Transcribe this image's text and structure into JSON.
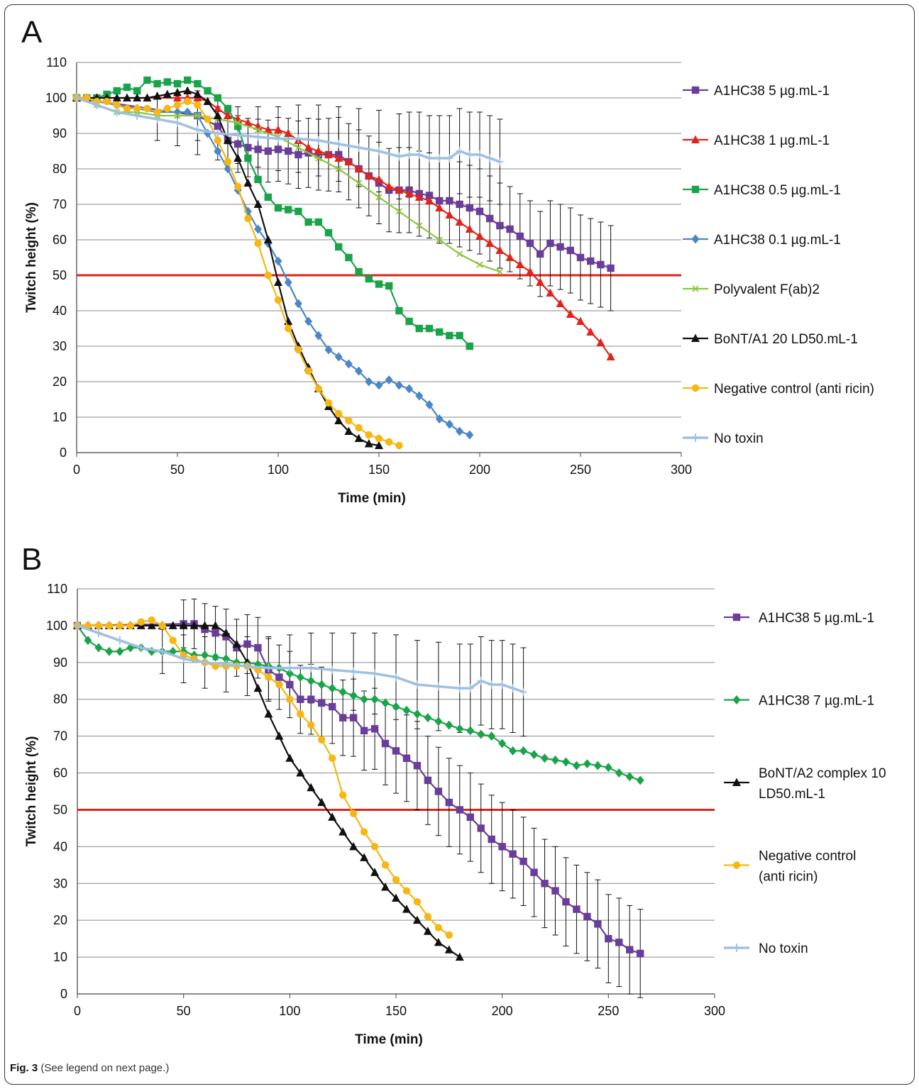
{
  "caption": {
    "label": "Fig. 3",
    "text": "(See legend on next page.)"
  },
  "chart_data": [
    {
      "panel": "A",
      "type": "line",
      "xlabel": "Time (min)",
      "ylabel": "Twitch height (%)",
      "xlim": [
        0,
        300
      ],
      "ylim": [
        0,
        110
      ],
      "xticks": [
        0,
        50,
        100,
        150,
        200,
        250,
        300
      ],
      "yticks": [
        0,
        10,
        20,
        30,
        40,
        50,
        60,
        70,
        80,
        90,
        100,
        110
      ],
      "grid": "horizontal",
      "legend": "right",
      "threshold": {
        "y": 50,
        "color": "#e0241b"
      },
      "series": [
        {
          "name": "A1HC38 5 µg.mL-1",
          "color": "#6a3d9a",
          "marker": "square",
          "errorbars": true,
          "x": [
            0,
            60,
            70,
            75,
            80,
            85,
            90,
            95,
            100,
            105,
            110,
            115,
            120,
            125,
            130,
            135,
            140,
            145,
            150,
            155,
            160,
            165,
            170,
            175,
            180,
            185,
            190,
            195,
            200,
            205,
            210,
            215,
            220,
            225,
            230,
            235,
            240,
            245,
            250,
            255,
            260,
            265
          ],
          "y": [
            100,
            95,
            92,
            88,
            87,
            86,
            85.5,
            85,
            85.5,
            85,
            84,
            84.5,
            84,
            84,
            84,
            82,
            80,
            78,
            76,
            74,
            74,
            74,
            73,
            72.5,
            71,
            71,
            70,
            69,
            68,
            66,
            64,
            63,
            61,
            59,
            56,
            59,
            58,
            57,
            55,
            54,
            53,
            52
          ]
        },
        {
          "name": "A1HC38 1 µg.mL-1",
          "color": "#e0241b",
          "marker": "triangle",
          "errorbars": false,
          "x": [
            0,
            50,
            55,
            60,
            65,
            70,
            75,
            80,
            85,
            90,
            95,
            100,
            105,
            110,
            115,
            120,
            125,
            130,
            135,
            140,
            145,
            150,
            155,
            160,
            165,
            170,
            175,
            180,
            185,
            190,
            195,
            200,
            205,
            210,
            215,
            220,
            225,
            230,
            235,
            240,
            245,
            250,
            255,
            260,
            265
          ],
          "y": [
            100,
            100,
            100,
            100,
            99,
            97,
            95,
            94,
            93,
            92,
            91,
            91,
            90,
            88,
            86,
            85,
            84,
            83,
            82,
            80,
            78,
            77,
            75,
            74,
            73,
            72,
            71,
            69,
            67,
            65,
            63,
            61,
            59,
            57,
            55,
            53,
            51,
            48,
            45,
            42,
            39,
            37,
            34,
            31,
            27
          ]
        },
        {
          "name": "A1HC38 0.5 µg.mL-1",
          "color": "#1aa44a",
          "marker": "square",
          "errorbars": false,
          "x": [
            0,
            5,
            10,
            15,
            20,
            25,
            30,
            35,
            40,
            45,
            50,
            55,
            60,
            65,
            70,
            75,
            80,
            85,
            90,
            95,
            100,
            105,
            110,
            115,
            120,
            125,
            130,
            135,
            140,
            145,
            150,
            155,
            160,
            165,
            170,
            175,
            180,
            185,
            190,
            195
          ],
          "y": [
            100,
            100,
            100,
            101,
            102,
            103,
            102,
            105,
            104,
            104.5,
            104,
            105,
            104,
            102,
            100,
            97,
            92,
            83,
            77,
            72,
            69,
            68.5,
            68,
            65,
            65,
            62,
            58,
            55,
            51,
            49,
            47.5,
            47,
            40,
            37,
            35,
            35,
            34,
            33,
            33,
            30
          ]
        },
        {
          "name": "A1HC38 0.1 µg.mL-1",
          "color": "#4a86c8",
          "marker": "diamond",
          "errorbars": false,
          "x": [
            0,
            10,
            20,
            30,
            40,
            50,
            55,
            60,
            65,
            70,
            75,
            80,
            85,
            90,
            95,
            100,
            105,
            110,
            115,
            120,
            125,
            130,
            135,
            140,
            145,
            150,
            155,
            160,
            165,
            170,
            175,
            180,
            185,
            190,
            195
          ],
          "y": [
            100,
            99,
            98,
            97,
            96,
            96,
            96,
            95,
            90,
            85,
            80,
            74,
            68,
            63,
            59,
            54,
            48,
            42,
            37,
            33,
            29,
            27,
            25,
            23,
            20,
            19,
            20.5,
            19,
            18,
            16,
            13.5,
            9.5,
            8,
            6,
            5
          ]
        },
        {
          "name": "Polyvalent F(ab)2",
          "color": "#8ec63f",
          "marker": "cross",
          "errorbars": false,
          "x": [
            0,
            10,
            20,
            30,
            40,
            50,
            60,
            70,
            80,
            90,
            100,
            110,
            120,
            130,
            140,
            150,
            160,
            170,
            180,
            190,
            200,
            210
          ],
          "y": [
            100,
            98,
            96,
            96,
            95,
            95,
            95,
            94,
            93,
            91,
            89,
            86,
            83,
            80,
            76,
            72,
            68,
            64,
            60,
            56,
            53,
            51
          ]
        },
        {
          "name": "BoNT/A1 20 LD50.mL-1",
          "color": "#111111",
          "marker": "triangle",
          "errorbars": false,
          "x": [
            0,
            5,
            10,
            15,
            20,
            25,
            30,
            35,
            40,
            45,
            50,
            55,
            60,
            65,
            70,
            75,
            80,
            85,
            90,
            95,
            100,
            105,
            110,
            115,
            120,
            125,
            130,
            135,
            140,
            145,
            150
          ],
          "y": [
            100,
            100,
            100,
            100,
            100,
            100,
            100,
            100,
            100.5,
            101,
            101.5,
            102,
            101,
            99,
            95,
            88,
            83,
            76,
            70,
            60,
            48,
            37,
            30,
            24,
            18,
            13,
            9,
            6,
            4,
            2.5,
            2
          ]
        },
        {
          "name": "Negative control (anti ricin)",
          "color": "#f6b613",
          "marker": "circle",
          "errorbars": false,
          "x": [
            0,
            5,
            10,
            15,
            20,
            25,
            30,
            35,
            40,
            45,
            50,
            55,
            60,
            65,
            70,
            75,
            80,
            85,
            90,
            95,
            100,
            105,
            110,
            115,
            120,
            125,
            130,
            135,
            140,
            145,
            150,
            155,
            160
          ],
          "y": [
            100,
            100,
            99,
            99,
            98,
            97,
            97,
            97,
            96,
            97,
            98,
            99,
            98,
            94,
            88,
            82,
            75,
            66,
            59,
            50,
            43,
            35,
            29,
            23,
            18,
            14,
            11,
            9,
            7,
            5,
            4,
            3,
            2
          ]
        },
        {
          "name": "No toxin",
          "color": "#9fbfe3",
          "marker": "plus",
          "errorbars": true,
          "x": [
            0,
            10,
            20,
            30,
            40,
            50,
            60,
            70,
            80,
            90,
            100,
            110,
            120,
            130,
            140,
            150,
            160,
            165,
            170,
            175,
            180,
            185,
            190,
            195,
            200,
            205,
            210
          ],
          "y": [
            100,
            98,
            96,
            95,
            94,
            93,
            91,
            90,
            89.5,
            89,
            88.5,
            88.5,
            88,
            87,
            86,
            85,
            83.5,
            84,
            84,
            83,
            83,
            83,
            85,
            84,
            84,
            83,
            82
          ]
        }
      ]
    },
    {
      "panel": "B",
      "type": "line",
      "xlabel": "Time (min)",
      "ylabel": "Twitch height (%)",
      "xlim": [
        0,
        300
      ],
      "ylim": [
        0,
        110
      ],
      "xticks": [
        0,
        50,
        100,
        150,
        200,
        250,
        300
      ],
      "yticks": [
        0,
        10,
        20,
        30,
        40,
        50,
        60,
        70,
        80,
        90,
        100,
        110
      ],
      "grid": "horizontal",
      "legend": "right",
      "threshold": {
        "y": 50,
        "color": "#e0241b"
      },
      "series": [
        {
          "name": "A1HC38 5 µg.mL-1",
          "color": "#6a3d9a",
          "marker": "square",
          "errorbars": true,
          "x": [
            0,
            50,
            55,
            60,
            65,
            70,
            75,
            80,
            85,
            90,
            95,
            100,
            105,
            110,
            115,
            120,
            125,
            130,
            135,
            140,
            145,
            150,
            155,
            160,
            165,
            170,
            175,
            180,
            185,
            190,
            195,
            200,
            205,
            210,
            215,
            220,
            225,
            230,
            235,
            240,
            245,
            250,
            255,
            260,
            265
          ],
          "y": [
            100,
            100.5,
            100.5,
            99,
            98,
            97,
            94,
            95,
            94,
            88,
            86,
            84,
            80,
            80,
            79,
            78,
            75,
            75,
            71.5,
            72,
            68,
            66,
            64,
            62,
            58,
            55,
            52,
            50,
            48,
            45,
            42,
            40,
            38,
            36,
            33,
            30,
            28,
            25,
            23,
            21,
            19,
            15,
            14,
            12,
            11
          ]
        },
        {
          "name": "A1HC38 7 µg.mL-1",
          "color": "#1aa44a",
          "marker": "diamond",
          "errorbars": false,
          "x": [
            0,
            5,
            10,
            15,
            20,
            25,
            30,
            35,
            40,
            45,
            50,
            55,
            60,
            65,
            70,
            75,
            80,
            85,
            90,
            95,
            100,
            105,
            110,
            115,
            120,
            125,
            130,
            135,
            140,
            145,
            150,
            155,
            160,
            165,
            170,
            175,
            180,
            185,
            190,
            195,
            200,
            205,
            210,
            215,
            220,
            225,
            230,
            235,
            240,
            245,
            250,
            255,
            260,
            265
          ],
          "y": [
            100,
            96,
            94,
            93,
            93,
            94,
            94,
            93,
            93,
            93,
            93,
            92,
            92,
            91.5,
            91,
            90,
            90,
            89.5,
            89,
            88.5,
            87,
            86,
            85,
            84,
            83,
            82,
            81,
            80,
            80,
            79,
            78,
            77,
            76,
            75,
            74,
            73,
            72,
            71.5,
            70.5,
            70,
            68,
            66,
            66,
            65,
            64,
            63.5,
            63,
            62,
            62.5,
            62,
            61.5,
            60,
            59,
            58
          ]
        },
        {
          "name": "BoNT/A2 complex 10 LD50.mL-1",
          "color": "#111111",
          "marker": "triangle",
          "errorbars": false,
          "x": [
            0,
            5,
            10,
            15,
            20,
            25,
            30,
            35,
            40,
            45,
            50,
            55,
            60,
            65,
            70,
            75,
            80,
            85,
            90,
            95,
            100,
            105,
            110,
            115,
            120,
            125,
            130,
            135,
            140,
            145,
            150,
            155,
            160,
            165,
            170,
            175,
            180
          ],
          "y": [
            100,
            100,
            100,
            100,
            100,
            100,
            100,
            100,
            100,
            100,
            100,
            100,
            100,
            100,
            98,
            95,
            90,
            83,
            76,
            70,
            64,
            60,
            56,
            52,
            48,
            44,
            40,
            37,
            33,
            29,
            26,
            23,
            20,
            17,
            14,
            12,
            10
          ]
        },
        {
          "name": "Negative control (anti ricin)",
          "color": "#f6b613",
          "marker": "circle",
          "errorbars": false,
          "x": [
            0,
            5,
            10,
            15,
            20,
            25,
            30,
            35,
            40,
            45,
            50,
            55,
            60,
            65,
            70,
            75,
            80,
            85,
            90,
            95,
            100,
            105,
            110,
            115,
            120,
            125,
            130,
            135,
            140,
            145,
            150,
            155,
            160,
            165,
            170,
            175
          ],
          "y": [
            100,
            100,
            100,
            100,
            100,
            100,
            101,
            101.5,
            100,
            96,
            92,
            91,
            90,
            89,
            89,
            89,
            89,
            88,
            86,
            84,
            80,
            76,
            73,
            69,
            64,
            54,
            49,
            44,
            40,
            35,
            31,
            28,
            25,
            21,
            18,
            16
          ]
        },
        {
          "name": "No toxin",
          "color": "#9fbfe3",
          "marker": "plus",
          "errorbars": true,
          "x": [
            0,
            10,
            20,
            30,
            40,
            50,
            60,
            70,
            80,
            90,
            100,
            110,
            120,
            130,
            140,
            150,
            160,
            170,
            180,
            185,
            190,
            195,
            200,
            205,
            210
          ],
          "y": [
            100,
            98,
            96,
            94,
            93,
            91,
            90,
            89.5,
            89,
            88.5,
            88.5,
            88.5,
            88,
            87.5,
            87,
            86,
            84,
            83.5,
            83,
            83,
            85,
            84,
            84,
            83,
            82
          ]
        }
      ]
    }
  ]
}
